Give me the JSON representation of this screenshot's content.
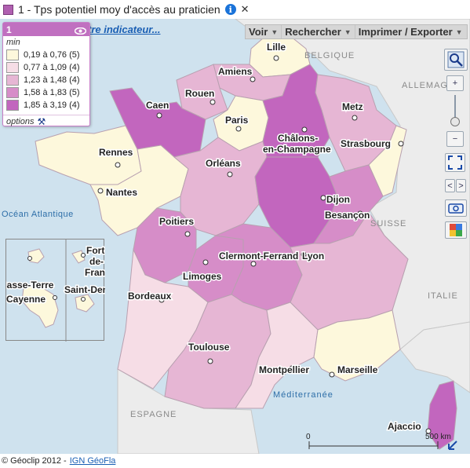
{
  "title": {
    "text": "1 - Tps potentiel moy d'accès au praticien"
  },
  "colors": {
    "class1": "#fdf8dc",
    "class2": "#f6dde6",
    "class3": "#e6b6d4",
    "class4": "#d68dc8",
    "class5": "#c266be",
    "sea": "#cfe2ee",
    "foreign_land": "#ececec",
    "accent": "#c070c0"
  },
  "legend": {
    "number": "1",
    "unit": "min",
    "classes": [
      {
        "label": "0,19 à 0,76 (5)",
        "color": "#fdf8dc"
      },
      {
        "label": "0,77 à 1,09 (4)",
        "color": "#f6dde6"
      },
      {
        "label": "1,23 à 1,48 (4)",
        "color": "#e6b6d4"
      },
      {
        "label": "1,58 à 1,83 (5)",
        "color": "#d68dc8"
      },
      {
        "label": "1,85 à 3,19 (4)",
        "color": "#c266be"
      }
    ],
    "options_label": "options"
  },
  "other_indicator_link": "tre indicateur...",
  "toolbar": {
    "items": [
      {
        "label": "Voir"
      },
      {
        "label": "Rechercher"
      },
      {
        "label": "Imprimer / Exporter"
      }
    ]
  },
  "countries": {
    "belgique": "BELGIQUE",
    "allemagne": "ALLEMAGNE",
    "suisse": "SUISSE",
    "italie": "ITALIE",
    "espagne": "ESPAGNE",
    "atlantique": "Océan Atlantique",
    "mediterranee": "Méditerranée"
  },
  "cities": {
    "lille": "Lille",
    "amiens": "Amiens",
    "rouen": "Rouen",
    "caen": "Caen",
    "paris": "Paris",
    "chalons": "Châlons-",
    "chalons2": "en-Champagne",
    "metz": "Metz",
    "strasbourg": "Strasbourg",
    "rennes": "Rennes",
    "orleans": "Orléans",
    "nantes": "Nantes",
    "dijon": "Dijon",
    "besancon": "Besançon",
    "poitiers": "Poitiers",
    "clermont": "Clermont-Ferrand",
    "lyon": "Lyon",
    "limoges": "Limoges",
    "bordeaux": "Bordeaux",
    "toulouse": "Toulouse",
    "montpellier": "Montpellier",
    "marseille": "Marseille",
    "ajaccio": "Ajaccio"
  },
  "overseas": {
    "basse_terre": "Basse-Terre",
    "fort_de_france_1": "Fort-",
    "fort_de_france_2": "de-",
    "fort_de_france_3": "France",
    "cayenne": "Cayenne",
    "saint_denis": "Saint-Denis"
  },
  "scale": {
    "zero": "0",
    "max": "500 km"
  },
  "footer": {
    "copyright": "© Géoclip 2012 -",
    "link": "IGN GéoFla"
  }
}
